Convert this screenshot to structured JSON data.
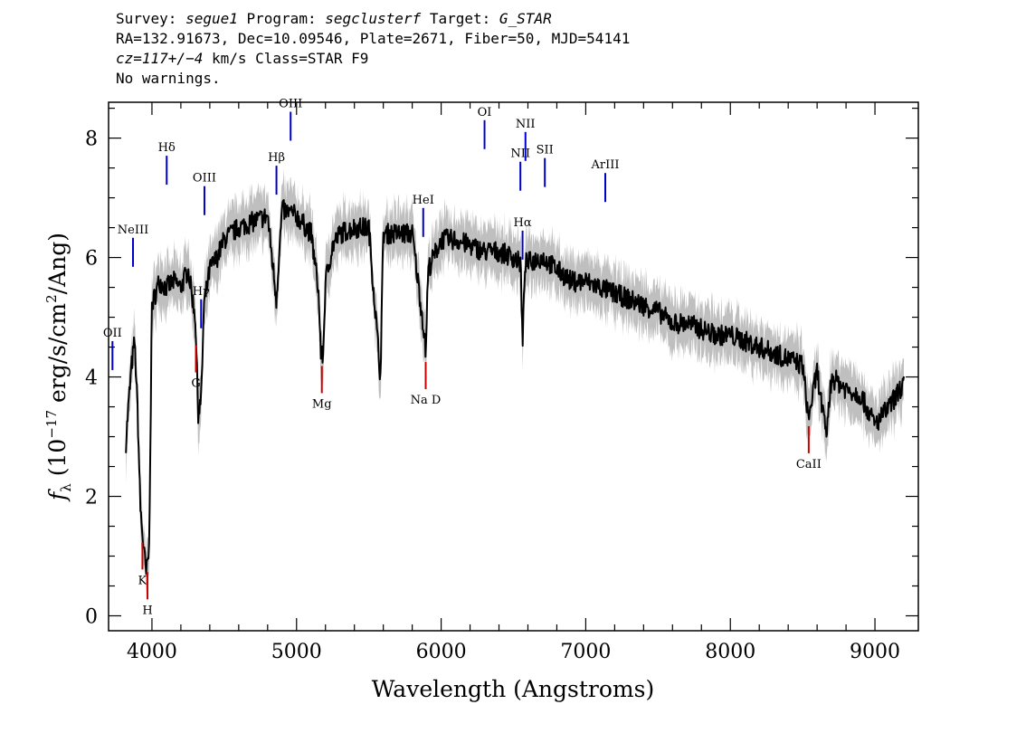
{
  "header": {
    "survey_label": "Survey:",
    "survey": "segue1",
    "program_label": "Program:",
    "program": "segclusterf",
    "target_label": "Target:",
    "target": "G_STAR",
    "line2": "RA=132.91673, Dec=10.09546, Plate=2671, Fiber=50, MJD=54141",
    "cz": "cz=117+/−4",
    "cz_rest": "km/s Class=STAR F9",
    "warnings": "No warnings."
  },
  "chart_data": {
    "type": "line",
    "title": "",
    "xlabel": "Wavelength (Angstroms)",
    "ylabel_prefix": "f",
    "ylabel_sub": "λ",
    "ylabel_main": "(10",
    "ylabel_exp": "−17",
    "ylabel_mid": "erg/s/cm",
    "ylabel_exp2": "2",
    "ylabel_end": "/Ang)",
    "xlim": [
      3700,
      9300
    ],
    "ylim": [
      -0.25,
      8.6
    ],
    "xticks": [
      4000,
      5000,
      6000,
      7000,
      8000,
      9000
    ],
    "xtick_labels": [
      "4000",
      "5000",
      "6000",
      "7000",
      "8000",
      "9000"
    ],
    "yticks": [
      0,
      2,
      4,
      6,
      8
    ],
    "ytick_labels": [
      "0",
      "2",
      "4",
      "6",
      "8"
    ],
    "colors": {
      "flux": "#000000",
      "error": "#bfbfbf",
      "emission": "#0000cc",
      "absorption": "#cc0000"
    },
    "series": [
      {
        "name": "",
        "x": [
          3820,
          3840,
          3860,
          3880,
          3900,
          3920,
          3940,
          3960,
          3980,
          4000,
          4050,
          4100,
          4150,
          4200,
          4250,
          4300,
          4320,
          4340,
          4360,
          4400,
          4450,
          4500,
          4600,
          4700,
          4800,
          4860,
          4900,
          5000,
          5100,
          5150,
          5170,
          5185,
          5200,
          5250,
          5300,
          5400,
          5500,
          5580,
          5600,
          5700,
          5800,
          5880,
          5893,
          5910,
          6000,
          6100,
          6200,
          6300,
          6400,
          6500,
          6550,
          6563,
          6580,
          6700,
          6800,
          6900,
          7000,
          7100,
          7200,
          7300,
          7400,
          7500,
          7600,
          7700,
          7800,
          7900,
          8000,
          8100,
          8200,
          8300,
          8400,
          8500,
          8540,
          8600,
          8662,
          8700,
          8800,
          8900,
          9000,
          9100,
          9200
        ],
        "y": [
          2.9,
          3.6,
          4.2,
          4.6,
          3.5,
          1.8,
          1.2,
          0.7,
          1.1,
          5.2,
          5.6,
          5.5,
          5.6,
          5.5,
          5.8,
          5.0,
          3.4,
          3.6,
          5.2,
          5.8,
          6.0,
          6.3,
          6.5,
          6.6,
          6.7,
          5.3,
          6.8,
          6.7,
          6.4,
          5.5,
          4.3,
          4.4,
          5.6,
          6.2,
          6.4,
          6.5,
          6.5,
          4.0,
          6.4,
          6.4,
          6.4,
          4.8,
          4.4,
          5.8,
          6.3,
          6.3,
          6.2,
          6.1,
          6.1,
          6.0,
          5.9,
          4.5,
          5.9,
          6.0,
          5.8,
          5.6,
          5.6,
          5.5,
          5.4,
          5.3,
          5.2,
          5.1,
          4.9,
          4.9,
          4.8,
          4.7,
          4.7,
          4.6,
          4.5,
          4.4,
          4.3,
          4.2,
          3.3,
          4.1,
          3.0,
          4.0,
          3.8,
          3.7,
          3.2,
          3.5,
          3.9
        ]
      }
    ],
    "emission_lines": [
      {
        "label": "OII",
        "wave": 3727
      },
      {
        "label": "NeIII",
        "wave": 3869
      },
      {
        "label": "Hδ",
        "wave": 4102
      },
      {
        "label": "Hγ",
        "wave": 4340
      },
      {
        "label": "OIII",
        "wave": 4363
      },
      {
        "label": "Hβ",
        "wave": 4861
      },
      {
        "label": "OIII",
        "wave": 4959
      },
      {
        "label": "HeI",
        "wave": 5876
      },
      {
        "label": "OI",
        "wave": 6300
      },
      {
        "label": "NII",
        "wave": 6548
      },
      {
        "label": "Hα",
        "wave": 6563
      },
      {
        "label": "NII",
        "wave": 6583
      },
      {
        "label": "SII",
        "wave": 6717
      },
      {
        "label": "ArIII",
        "wave": 7135
      }
    ],
    "absorption_lines": [
      {
        "label": "K",
        "wave": 3934
      },
      {
        "label": "H",
        "wave": 3969
      },
      {
        "label": "G",
        "wave": 4304
      },
      {
        "label": "Mg",
        "wave": 5175
      },
      {
        "label": "Na D",
        "wave": 5893
      },
      {
        "label": "CaII",
        "wave": 8542
      }
    ]
  }
}
